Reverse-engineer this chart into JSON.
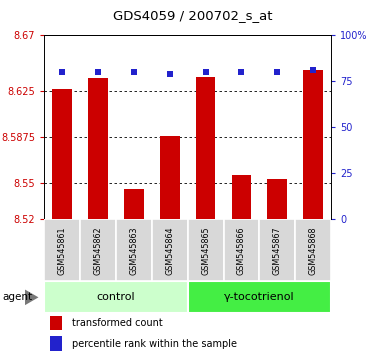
{
  "title": "GDS4059 / 200702_s_at",
  "samples": [
    "GSM545861",
    "GSM545862",
    "GSM545863",
    "GSM545864",
    "GSM545865",
    "GSM545866",
    "GSM545867",
    "GSM545868"
  ],
  "bar_values": [
    8.626,
    8.635,
    8.545,
    8.588,
    8.636,
    8.556,
    8.553,
    8.642
  ],
  "bar_bottom": 8.52,
  "percentile_values": [
    80,
    80,
    80,
    79,
    80,
    80,
    80,
    81
  ],
  "bar_color": "#cc0000",
  "dot_color": "#2222cc",
  "ylim_left": [
    8.52,
    8.67
  ],
  "ylim_right": [
    0,
    100
  ],
  "yticks_left": [
    8.52,
    8.55,
    8.5875,
    8.625,
    8.67
  ],
  "yticks_left_labels": [
    "8.52",
    "8.55",
    "8.5875",
    "8.625",
    "8.67"
  ],
  "yticks_right": [
    0,
    25,
    50,
    75,
    100
  ],
  "yticks_right_labels": [
    "0",
    "25",
    "50",
    "75",
    "100%"
  ],
  "groups": [
    {
      "label": "control",
      "indices": [
        0,
        1,
        2,
        3
      ],
      "color": "#ccffcc"
    },
    {
      "label": "γ-tocotrienol",
      "indices": [
        4,
        5,
        6,
        7
      ],
      "color": "#44ee44"
    }
  ],
  "agent_label": "agent",
  "legend_bar_label": "transformed count",
  "legend_dot_label": "percentile rank within the sample",
  "bar_width": 0.55
}
